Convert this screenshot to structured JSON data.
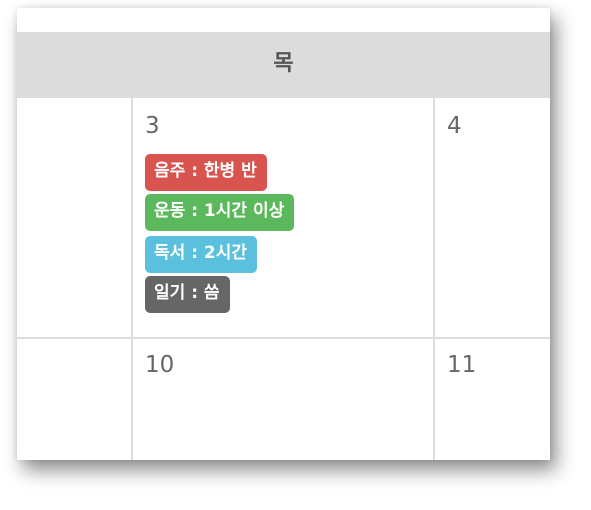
{
  "header": {
    "day_label": "목"
  },
  "days": {
    "d3": "3",
    "d4": "4",
    "d10": "10",
    "d11": "11"
  },
  "events": [
    {
      "label": "음주 : 한병 반",
      "color": "#d9534f"
    },
    {
      "label": "운동 : 1시간 이상",
      "color": "#5cb85c"
    },
    {
      "label": "독서 : 2시간",
      "color": "#5bc0de"
    },
    {
      "label": "일기 : 씀",
      "color": "#666666"
    }
  ]
}
